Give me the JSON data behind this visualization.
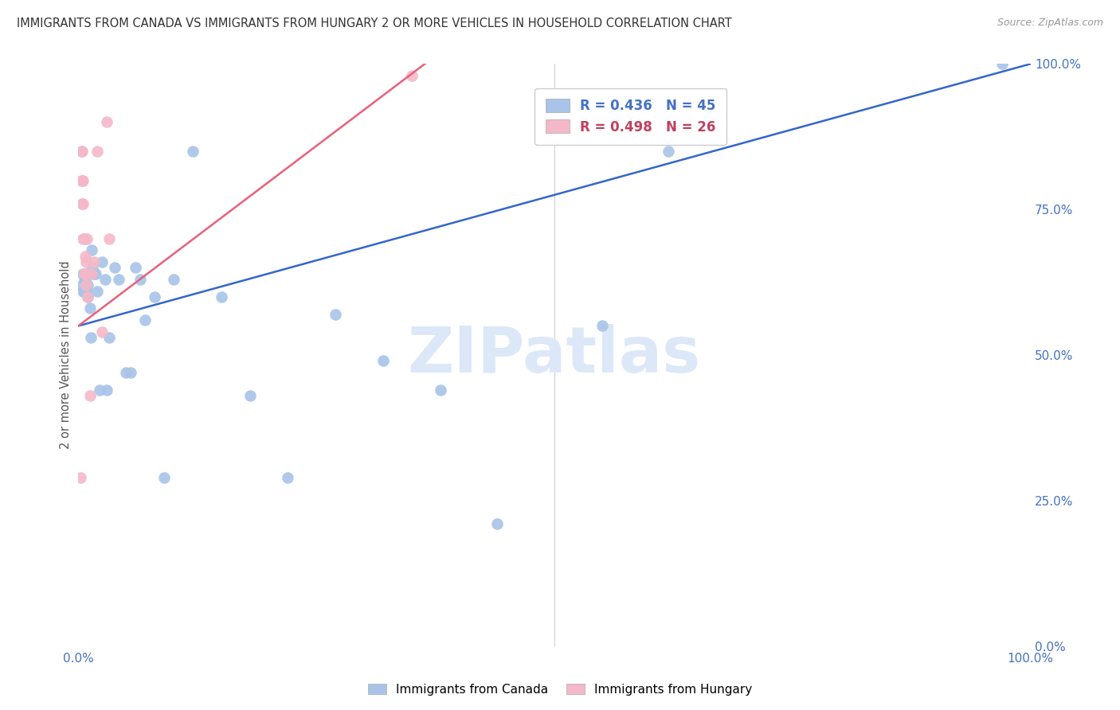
{
  "title": "IMMIGRANTS FROM CANADA VS IMMIGRANTS FROM HUNGARY 2 OR MORE VEHICLES IN HOUSEHOLD CORRELATION CHART",
  "source": "Source: ZipAtlas.com",
  "ylabel": "2 or more Vehicles in Household",
  "xlim": [
    0,
    1
  ],
  "ylim": [
    0,
    1
  ],
  "ytick_labels": [
    "0.0%",
    "25.0%",
    "50.0%",
    "75.0%",
    "100.0%"
  ],
  "ytick_positions": [
    0.0,
    0.25,
    0.5,
    0.75,
    1.0
  ],
  "xtick_labels": [
    "0.0%",
    "100.0%"
  ],
  "xtick_positions": [
    0.0,
    1.0
  ],
  "R_canada": 0.436,
  "N_canada": 45,
  "R_hungary": 0.498,
  "N_hungary": 26,
  "canada_color": "#a8c4e8",
  "hungary_color": "#f4b8c8",
  "canada_line_color": "#3366cc",
  "hungary_line_color": "#e8607a",
  "watermark": "ZIPatlas",
  "watermark_color": "#dce8f8",
  "canada_line_x": [
    0.0,
    1.0
  ],
  "canada_line_y": [
    0.55,
    1.0
  ],
  "hungary_line_x": [
    0.0,
    0.38
  ],
  "hungary_line_y": [
    0.55,
    1.02
  ],
  "canada_x": [
    0.004,
    0.005,
    0.005,
    0.006,
    0.006,
    0.007,
    0.007,
    0.008,
    0.008,
    0.009,
    0.01,
    0.01,
    0.012,
    0.013,
    0.014,
    0.015,
    0.016,
    0.018,
    0.02,
    0.022,
    0.025,
    0.028,
    0.03,
    0.032,
    0.038,
    0.042,
    0.05,
    0.055,
    0.06,
    0.065,
    0.07,
    0.08,
    0.09,
    0.1,
    0.12,
    0.15,
    0.18,
    0.22,
    0.27,
    0.32,
    0.38,
    0.44,
    0.55,
    0.62,
    0.97
  ],
  "canada_y": [
    0.62,
    0.64,
    0.61,
    0.63,
    0.61,
    0.63,
    0.61,
    0.64,
    0.62,
    0.61,
    0.6,
    0.62,
    0.58,
    0.53,
    0.68,
    0.65,
    0.64,
    0.64,
    0.61,
    0.44,
    0.66,
    0.63,
    0.44,
    0.53,
    0.65,
    0.63,
    0.47,
    0.47,
    0.65,
    0.63,
    0.56,
    0.6,
    0.29,
    0.63,
    0.85,
    0.6,
    0.43,
    0.29,
    0.57,
    0.49,
    0.44,
    0.21,
    0.55,
    0.85,
    1.0
  ],
  "hungary_x": [
    0.002,
    0.003,
    0.003,
    0.004,
    0.004,
    0.004,
    0.005,
    0.005,
    0.005,
    0.006,
    0.006,
    0.007,
    0.007,
    0.008,
    0.008,
    0.009,
    0.009,
    0.01,
    0.012,
    0.014,
    0.016,
    0.02,
    0.025,
    0.03,
    0.032,
    0.35
  ],
  "hungary_y": [
    0.29,
    0.85,
    0.8,
    0.85,
    0.8,
    0.76,
    0.8,
    0.76,
    0.7,
    0.7,
    0.64,
    0.67,
    0.64,
    0.62,
    0.66,
    0.64,
    0.7,
    0.6,
    0.43,
    0.64,
    0.66,
    0.85,
    0.54,
    0.9,
    0.7,
    0.98
  ]
}
